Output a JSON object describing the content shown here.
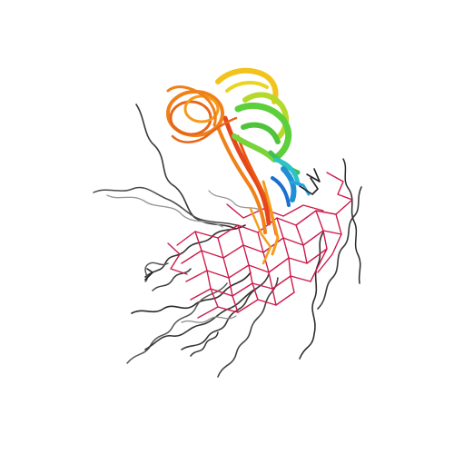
{
  "figure": {
    "subject": "protein-structure-ensemble",
    "background_color": "#ffffff",
    "palette": {
      "n_terminal_coil": "#333333",
      "tail_light": "#8c8c8c",
      "crosslink": "#cc1a4a",
      "blue": "#1f8fd6",
      "cyan": "#2cc3c8",
      "green": "#5ccf3a",
      "yellow_green": "#b5d92a",
      "yellow": "#f2c31a",
      "orange": "#f08018",
      "red_orange": "#e6461a"
    }
  }
}
